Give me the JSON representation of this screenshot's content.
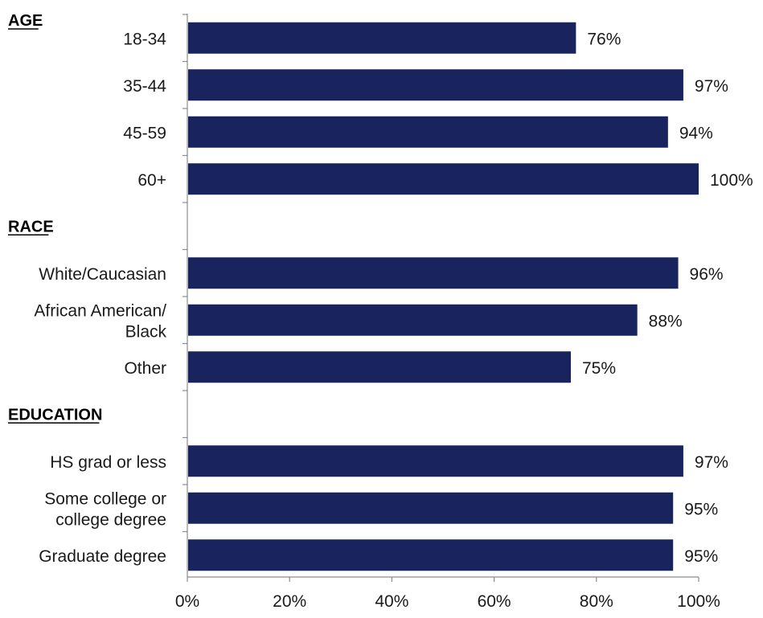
{
  "chart_data": {
    "type": "bar",
    "orientation": "horizontal",
    "xlim": [
      0,
      100
    ],
    "x_ticks": [
      "0%",
      "20%",
      "40%",
      "60%",
      "80%",
      "100%"
    ],
    "grid": false,
    "bar_color": "#19245e",
    "groups": [
      {
        "name": "AGE",
        "categories": [
          {
            "label": [
              "18-34"
            ],
            "value": 76,
            "value_label": "76%"
          },
          {
            "label": [
              "35-44"
            ],
            "value": 97,
            "value_label": "97%"
          },
          {
            "label": [
              "45-59"
            ],
            "value": 94,
            "value_label": "94%"
          },
          {
            "label": [
              "60+"
            ],
            "value": 100,
            "value_label": "100%"
          }
        ]
      },
      {
        "name": "RACE",
        "categories": [
          {
            "label": [
              "White/Caucasian"
            ],
            "value": 96,
            "value_label": "96%"
          },
          {
            "label": [
              "African American/",
              "Black"
            ],
            "value": 88,
            "value_label": "88%"
          },
          {
            "label": [
              "Other"
            ],
            "value": 75,
            "value_label": "75%"
          }
        ]
      },
      {
        "name": "EDUCATION",
        "categories": [
          {
            "label": [
              "HS grad or less"
            ],
            "value": 97,
            "value_label": "97%"
          },
          {
            "label": [
              "Some college or",
              "college degree"
            ],
            "value": 95,
            "value_label": "95%"
          },
          {
            "label": [
              "Graduate degree"
            ],
            "value": 95,
            "value_label": "95%"
          }
        ]
      }
    ]
  }
}
